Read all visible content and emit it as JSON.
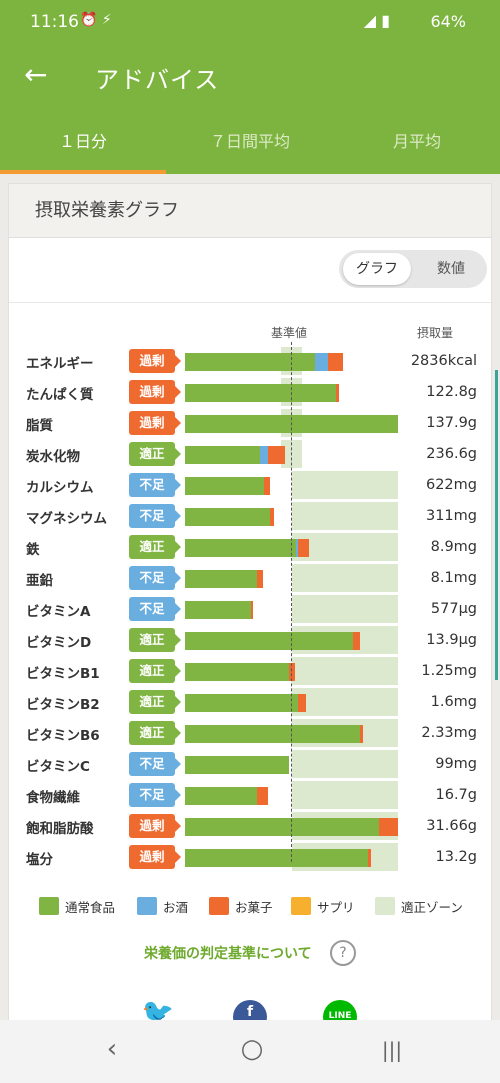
{
  "status_bar": {
    "time": "11:16",
    "icons": "⏰ ⚡",
    "battery": "64%"
  },
  "app_bar": {
    "title": "アドバイス",
    "back_icon": "arrow-left-icon"
  },
  "tabs": [
    {
      "label": "１日分",
      "active": true
    },
    {
      "label": "７日間平均",
      "active": false
    },
    {
      "label": "月平均",
      "active": false
    }
  ],
  "card": {
    "title": "摂取栄養素グラフ",
    "toggle": {
      "graph": "グラフ",
      "values": "数値",
      "selected": "graph"
    },
    "col_standard": "基準値",
    "col_amount": "摂取量"
  },
  "colors": {
    "food": "#80b544",
    "alcohol": "#6aaee0",
    "snack": "#ef6a2f",
    "supplement": "#f6b02e",
    "zone": "#dde9ce",
    "status_over": "#ef6a2f",
    "status_ok": "#80b544",
    "status_low": "#6aaee0"
  },
  "nutrients": [
    {
      "name": "エネルギー",
      "status": "過剰",
      "status_type": "over",
      "value": "2836kcal",
      "food": 0.61,
      "alcohol": 0.06,
      "snack": 0.07,
      "zone": [
        0.45,
        0.55
      ]
    },
    {
      "name": "たんぱく質",
      "status": "過剰",
      "status_type": "over",
      "value": "122.8g",
      "food": 0.71,
      "alcohol": 0,
      "snack": 0.015,
      "zone": [
        0.45,
        0.55
      ]
    },
    {
      "name": "脂質",
      "status": "過剰",
      "status_type": "over",
      "value": "137.9g",
      "food": 1.0,
      "alcohol": 0,
      "snack": 0,
      "zone": [
        0.45,
        0.55
      ]
    },
    {
      "name": "炭水化物",
      "status": "適正",
      "status_type": "ok",
      "value": "236.6g",
      "food": 0.35,
      "alcohol": 0.04,
      "snack": 0.08,
      "zone": [
        0.45,
        0.55
      ]
    },
    {
      "name": "カルシウム",
      "status": "不足",
      "status_type": "low",
      "value": "622mg",
      "food": 0.37,
      "alcohol": 0,
      "snack": 0.03,
      "zone": [
        0.5,
        1.0
      ]
    },
    {
      "name": "マグネシウム",
      "status": "不足",
      "status_type": "low",
      "value": "311mg",
      "food": 0.4,
      "alcohol": 0,
      "snack": 0.02,
      "zone": [
        0.5,
        1.0
      ]
    },
    {
      "name": "鉄",
      "status": "適正",
      "status_type": "ok",
      "value": "8.9mg",
      "food": 0.52,
      "alcohol": 0.01,
      "snack": 0.05,
      "zone": [
        0.5,
        1.0
      ]
    },
    {
      "name": "亜鉛",
      "status": "不足",
      "status_type": "low",
      "value": "8.1mg",
      "food": 0.34,
      "alcohol": 0,
      "snack": 0.025,
      "zone": [
        0.5,
        1.0
      ]
    },
    {
      "name": "ビタミンA",
      "status": "不足",
      "status_type": "low",
      "value": "577μg",
      "food": 0.31,
      "alcohol": 0,
      "snack": 0.01,
      "zone": [
        0.5,
        1.0
      ]
    },
    {
      "name": "ビタミンD",
      "status": "適正",
      "status_type": "ok",
      "value": "13.9μg",
      "food": 0.79,
      "alcohol": 0,
      "snack": 0.03,
      "zone": [
        0.5,
        1.0
      ]
    },
    {
      "name": "ビタミンB1",
      "status": "適正",
      "status_type": "ok",
      "value": "1.25mg",
      "food": 0.49,
      "alcohol": 0,
      "snack": 0.025,
      "zone": [
        0.5,
        1.0
      ]
    },
    {
      "name": "ビタミンB2",
      "status": "適正",
      "status_type": "ok",
      "value": "1.6mg",
      "food": 0.53,
      "alcohol": 0,
      "snack": 0.04,
      "zone": [
        0.5,
        1.0
      ]
    },
    {
      "name": "ビタミンB6",
      "status": "適正",
      "status_type": "ok",
      "value": "2.33mg",
      "food": 0.82,
      "alcohol": 0,
      "snack": 0.015,
      "zone": [
        0.5,
        1.0
      ]
    },
    {
      "name": "ビタミンC",
      "status": "不足",
      "status_type": "low",
      "value": "99mg",
      "food": 0.49,
      "alcohol": 0,
      "snack": 0,
      "zone": [
        0.5,
        1.0
      ]
    },
    {
      "name": "食物繊維",
      "status": "不足",
      "status_type": "low",
      "value": "16.7g",
      "food": 0.34,
      "alcohol": 0,
      "snack": 0.05,
      "zone": [
        0.5,
        1.0
      ]
    },
    {
      "name": "飽和脂肪酸",
      "status": "過剰",
      "status_type": "over",
      "value": "31.66g",
      "food": 0.91,
      "alcohol": 0,
      "snack": 0.09,
      "zone": [
        0.5,
        1.0
      ]
    },
    {
      "name": "塩分",
      "status": "過剰",
      "status_type": "over",
      "value": "13.2g",
      "food": 0.86,
      "alcohol": 0,
      "snack": 0.015,
      "zone": [
        0.5,
        1.0
      ]
    }
  ],
  "legend": {
    "food": "通常食品",
    "alcohol": "お酒",
    "snack": "お菓子",
    "supplement": "サプリ",
    "zone": "適正ゾーン"
  },
  "criteria_link": "栄養価の判定基準について",
  "share": {
    "twitter": "twitter-icon",
    "facebook": "f",
    "line": "LINE"
  },
  "nav": {
    "back": "‹",
    "home": "○",
    "recents": "|||"
  }
}
